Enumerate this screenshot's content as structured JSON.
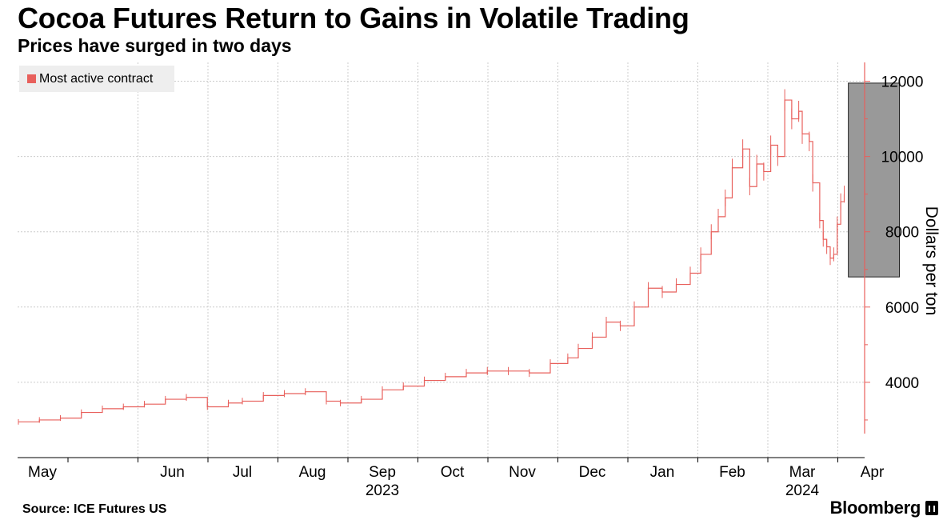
{
  "chart_data": {
    "type": "line",
    "title": "Cocoa Futures Return to Gains in Volatile Trading",
    "subtitle": "Prices have surged in two days",
    "xlabel": "",
    "ylabel": "Dollars per ton",
    "ylim": [
      2000,
      12500
    ],
    "yticks": [
      4000,
      6000,
      8000,
      10000,
      12000
    ],
    "ytick_labels": [
      "4000",
      "6000",
      "8000",
      "10000",
      "12000"
    ],
    "x_month_labels": [
      "May",
      "Jun",
      "Jul",
      "Aug",
      "Sep",
      "Oct",
      "Nov",
      "Dec",
      "Jan",
      "Feb",
      "Mar",
      "Apr"
    ],
    "x_year_labels": [
      {
        "label": "2023",
        "under_month": "Sep"
      },
      {
        "label": "2024",
        "under_month": "Mar"
      }
    ],
    "grid": true,
    "legend": {
      "position": "top-left",
      "entries": [
        "Most active contract"
      ]
    },
    "highlight_box": {
      "x_start_month": 11.15,
      "x_end_month": 11.88,
      "y_range": [
        6800,
        11950
      ]
    },
    "x_unit": "months since May 1, 2023",
    "series": [
      {
        "name": "Most active contract",
        "color": "#e8605c",
        "x": [
          0,
          0.3,
          0.6,
          0.9,
          1.2,
          1.5,
          1.8,
          2.1,
          2.4,
          2.7,
          3.0,
          3.2,
          3.5,
          3.8,
          4.1,
          4.4,
          4.6,
          4.9,
          5.2,
          5.5,
          5.8,
          6.1,
          6.4,
          6.7,
          7.0,
          7.3,
          7.6,
          7.85,
          8.0,
          8.2,
          8.4,
          8.6,
          8.8,
          9.0,
          9.2,
          9.4,
          9.6,
          9.75,
          9.9,
          10.0,
          10.1,
          10.2,
          10.35,
          10.45,
          10.55,
          10.65,
          10.75,
          10.85,
          10.95,
          11.05,
          11.15,
          11.2,
          11.3,
          11.35,
          11.45,
          11.5,
          11.55,
          11.6,
          11.65,
          11.7,
          11.75,
          11.8
        ],
        "values": [
          2950,
          3000,
          3050,
          3200,
          3300,
          3350,
          3420,
          3550,
          3600,
          3350,
          3450,
          3500,
          3650,
          3700,
          3750,
          3500,
          3450,
          3550,
          3800,
          3900,
          4050,
          4150,
          4250,
          4300,
          4300,
          4250,
          4500,
          4650,
          4900,
          5200,
          5600,
          5500,
          6000,
          6500,
          6400,
          6600,
          6900,
          7400,
          8000,
          8400,
          8900,
          9700,
          10200,
          9200,
          9800,
          9600,
          10300,
          10000,
          11500,
          11000,
          11200,
          10600,
          10400,
          9300,
          8300,
          7800,
          7600,
          7300,
          7400,
          8200,
          8800,
          9000
        ]
      }
    ]
  },
  "source_text": "Source: ICE Futures US",
  "brand_text": "Bloomberg",
  "colors": {
    "line": "#e8605c",
    "axis": "#e8605c",
    "grid": "#cccccc",
    "box": "#999999"
  }
}
